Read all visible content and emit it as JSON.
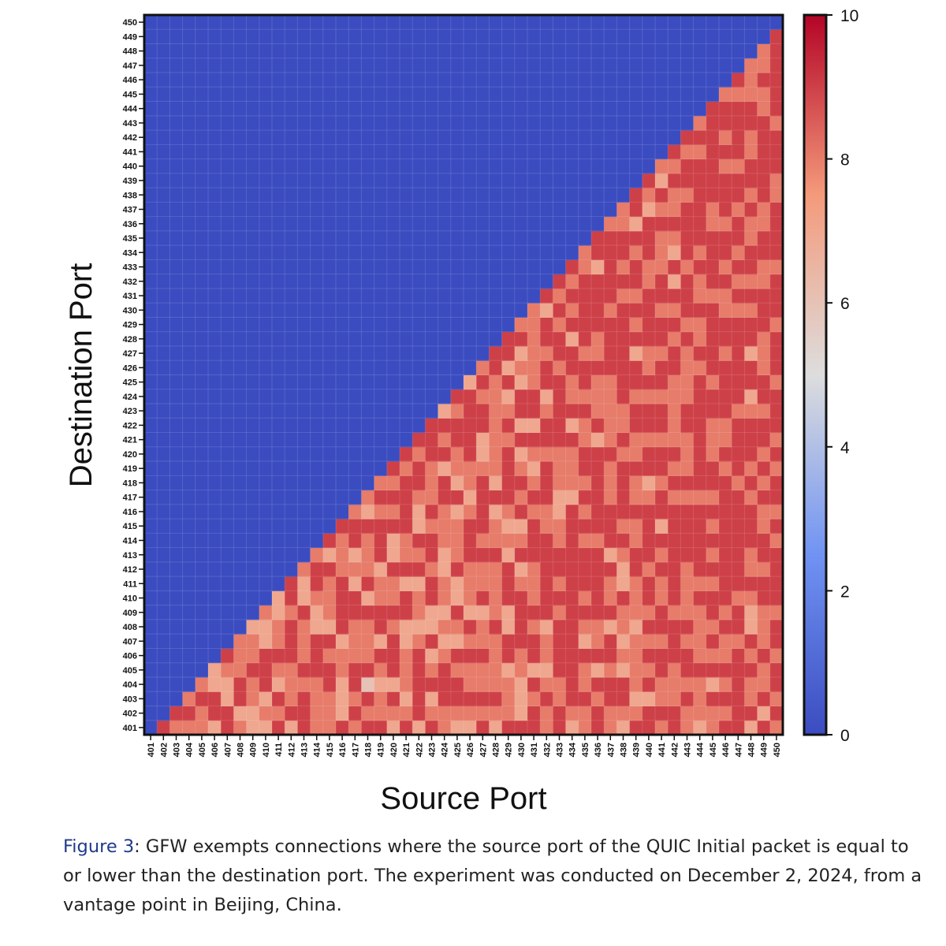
{
  "chart_data": {
    "type": "heatmap",
    "xlabel": "Source Port",
    "ylabel": "Destination Port",
    "x": [
      401,
      402,
      403,
      404,
      405,
      406,
      407,
      408,
      409,
      410,
      411,
      412,
      413,
      414,
      415,
      416,
      417,
      418,
      419,
      420,
      421,
      422,
      423,
      424,
      425,
      426,
      427,
      428,
      429,
      430,
      431,
      432,
      433,
      434,
      435,
      436,
      437,
      438,
      439,
      440,
      441,
      442,
      443,
      444,
      445,
      446,
      447,
      448,
      449,
      450
    ],
    "y": [
      401,
      402,
      403,
      404,
      405,
      406,
      407,
      408,
      409,
      410,
      411,
      412,
      413,
      414,
      415,
      416,
      417,
      418,
      419,
      420,
      421,
      422,
      423,
      424,
      425,
      426,
      427,
      428,
      429,
      430,
      431,
      432,
      433,
      434,
      435,
      436,
      437,
      438,
      439,
      440,
      441,
      442,
      443,
      444,
      445,
      446,
      447,
      448,
      449,
      450
    ],
    "colorbar": {
      "min": 0,
      "max": 10,
      "ticks": [
        0,
        2,
        4,
        6,
        8,
        10
      ],
      "colormap": "coolwarm"
    },
    "values_rule": "value = 0 where source port <= destination port; 5-10 (mostly 8-10) where source port > destination port",
    "z_lower": [
      "9",
      "89",
      "898",
      "8898",
      "79977",
      "997789",
      "8799888",
      "77889887",
      "787999778",
      "9897898877",
      "79888999899",
      "999898889778",
      "8888999778998",
      "88899897888979",
      "977788799998889",
      "8989988899787998",
      "98969888979888978",
      "988789799887999898",
      "7897999898897798989",
      "98788877997988999989",
      "799999878879897789989",
      "9879879779989989888999",
      "88999878788778889979897",
      "789989789779888797889989",
      "7898898978889998788999997",
      "98988988798898999987799898",
      "789888898888988797888888899",
      "9888799779997878999989879799",
      "97778899998798798987979978798",
      "998979989888999898789799888888",
      "8898788799999988999899879989979",
      "99889999898998877888999998998989",
      "789999999999999978889798899798989",
      "8898897898999898989988989989999988",
      "99897988999998999999798889889999799",
      "889989979889799988898888899998999998",
      "7899787889778989999898899999998989988",
      "98788887888998898898899899798989989799",
      "997989898998999987998998988999988999789",
      "8988998998898979989989989989989988898978",
      "99888999899999998989888889989897978988989",
      "889899898888999989888998888989998999989989",
      "7888988889899999899999999898898898999999898",
      "88979898998989898998889989999989999889999999",
      "989898898999999999898899998998898998999898998",
      "9999998998999999989999899999989898998998999989",
      "79889897789889998989998799799898998898998899888",
      "979889888998998898989989988899988998899999988988",
      "8989989989999898998989998999899989999889998999999"
    ]
  },
  "caption": {
    "figure_label": "Figure 3",
    "text": ": GFW exempts connections where the source port of the QUIC Initial packet is equal to or lower than the destination port. The experiment was conducted on December 2, 2024, from a vantage point in Beijing, China."
  }
}
